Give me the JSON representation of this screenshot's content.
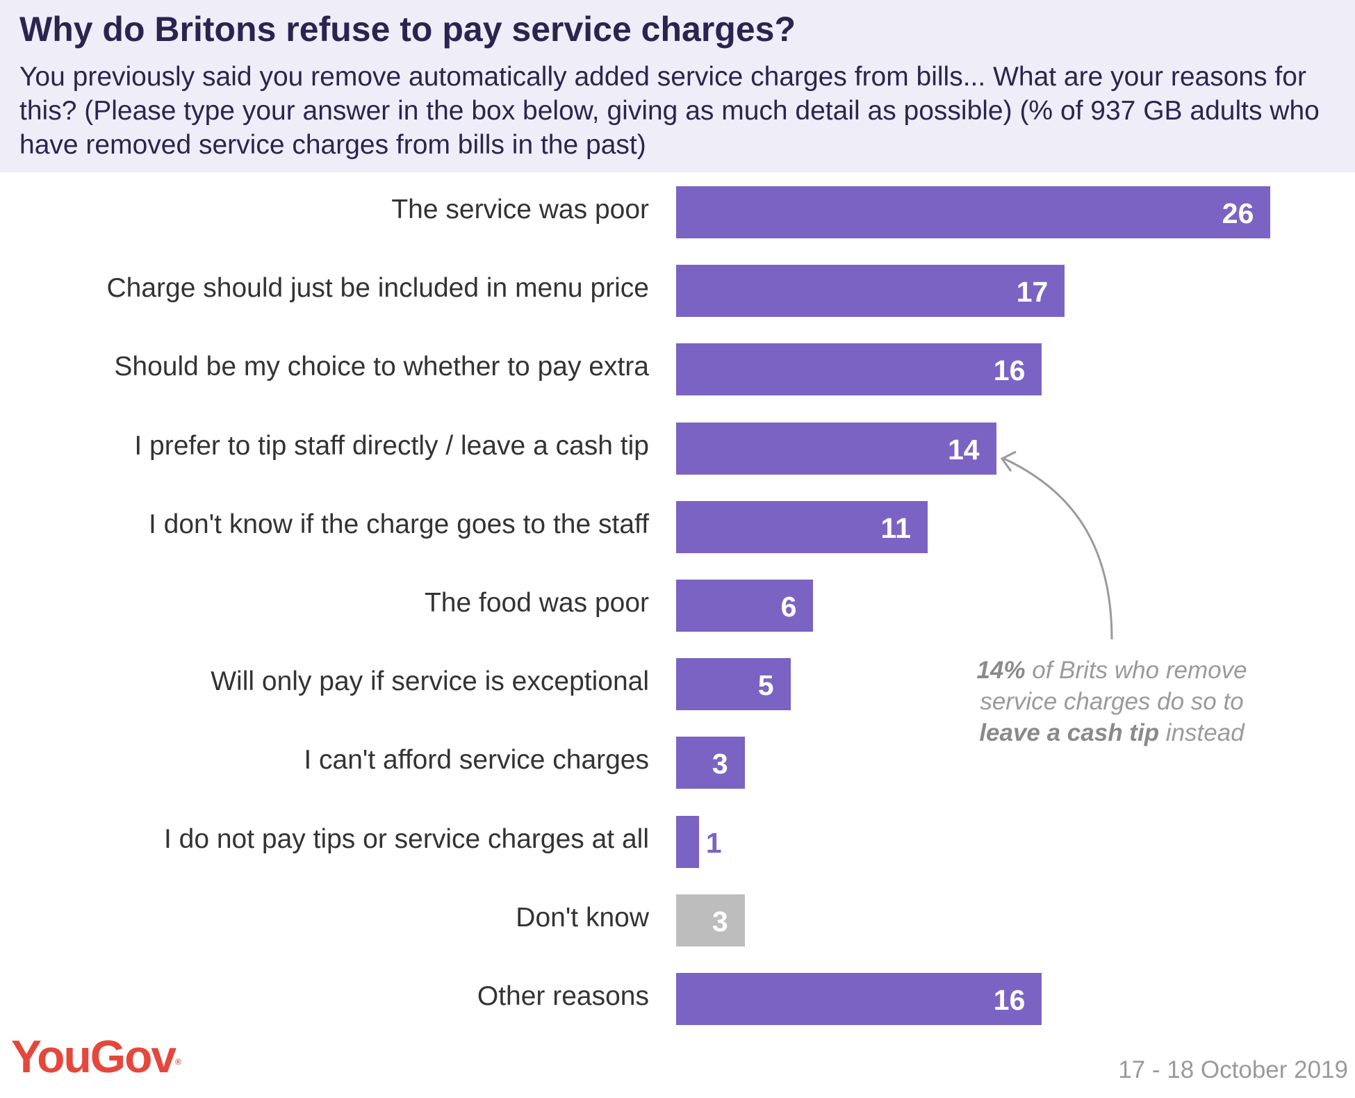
{
  "header": {
    "title": "Why do Britons refuse to pay service charges?",
    "subtitle": "You previously said you remove automatically added service charges from bills... What are your reasons for this? (Please type your answer in the box below, giving as much detail as possible) (% of 937 GB adults who have removed service charges from bills in the past)"
  },
  "chart_data": {
    "type": "bar",
    "orientation": "horizontal",
    "title": "Why do Britons refuse to pay service charges?",
    "categories": [
      "The service was poor",
      "Charge should just be included in menu price",
      "Should be my choice to whether to pay extra",
      "I prefer to tip staff directly / leave a cash tip",
      "I don't know if the charge goes to the staff",
      "The food was poor",
      "Will only pay if service is exceptional",
      "I can't afford service charges",
      "I do not pay tips or service charges at all",
      "Don't know",
      "Other reasons"
    ],
    "values": [
      26,
      17,
      16,
      14,
      11,
      6,
      5,
      3,
      1,
      3,
      16
    ],
    "value_labels": [
      "26",
      "17",
      "16",
      "14",
      "11",
      "6",
      "5",
      "3",
      "1",
      "3",
      "16"
    ],
    "colors": [
      "#7b63c3",
      "#7b63c3",
      "#7b63c3",
      "#7b63c3",
      "#7b63c3",
      "#7b63c3",
      "#7b63c3",
      "#7b63c3",
      "#7b63c3",
      "#bdbdbd",
      "#7b63c3"
    ],
    "label_colors": [
      "#ffffff",
      "#ffffff",
      "#ffffff",
      "#ffffff",
      "#ffffff",
      "#ffffff",
      "#ffffff",
      "#ffffff",
      "#7b63c3",
      "#ffffff",
      "#ffffff"
    ],
    "xlim": [
      0,
      26
    ],
    "unit": "%"
  },
  "annotation": {
    "part1_bold": "14%",
    "part2": " of Brits who remove service charges do so to ",
    "part3_bold": "leave a cash tip",
    "part4": " instead"
  },
  "footer": {
    "logo": "YouGov",
    "logo_mark": "®",
    "date": "17 - 18 October 2019"
  }
}
